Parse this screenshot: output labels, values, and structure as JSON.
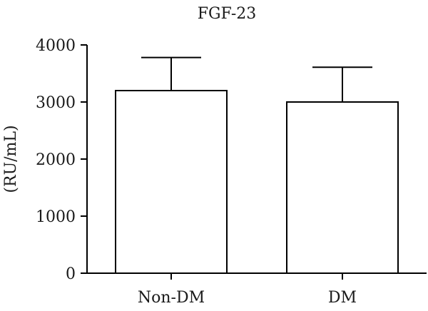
{
  "chart_data": {
    "type": "bar",
    "title": "FGF-23",
    "xlabel": "",
    "ylabel": "(RU/mL)",
    "categories": [
      "Non-DM",
      "DM"
    ],
    "values": [
      3200,
      3000
    ],
    "error_upper": [
      580,
      610
    ],
    "ylim": [
      0,
      4000
    ],
    "yticks": [
      0,
      1000,
      2000,
      3000,
      4000
    ],
    "grid": false,
    "legend": "none"
  },
  "colors": {
    "bar_fill": "#ffffff",
    "stroke": "#000000",
    "text": "#1a1a1a"
  }
}
